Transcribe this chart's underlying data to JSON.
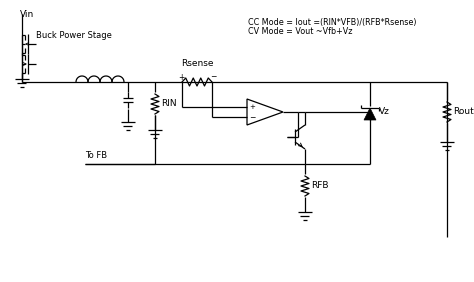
{
  "bg_color": "#ffffff",
  "line_color": "#000000",
  "labels": {
    "vin": "Vin",
    "buck_power_stage": "Buck Power Stage",
    "rsense": "Rsense",
    "rin": "RIN",
    "rfb": "RFB",
    "rout": "Rout",
    "vz": "Vz",
    "to_fb": "To FB",
    "cc_mode": "CC Mode = Iout =(RIN*VFB)/(RFB*Rsense)",
    "cv_mode": "CV Mode = Vout ~Vfb+Vz",
    "plus": "+",
    "minus": "-"
  }
}
